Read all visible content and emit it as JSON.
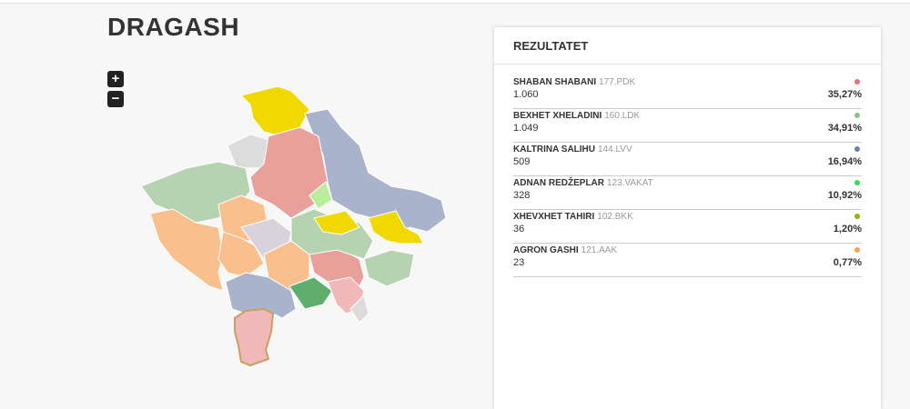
{
  "header": {
    "title": "DRAGASH"
  },
  "map": {
    "zoom_in": "+",
    "zoom_out": "−"
  },
  "panel": {
    "title": "REZULTATET",
    "rows": [
      {
        "name": "SHABAN SHABANI",
        "code": "177.PDK",
        "votes": "1.060",
        "percent": "35,27%",
        "color": "#e57373"
      },
      {
        "name": "BEXHET XHELADINI",
        "code": "160.LDK",
        "votes": "1.049",
        "percent": "34,91%",
        "color": "#81c784"
      },
      {
        "name": "KALTRINA SALIHU",
        "code": "144.LVV",
        "votes": "509",
        "percent": "16,94%",
        "color": "#6b7fb0"
      },
      {
        "name": "ADNAN REDŽEPLAR",
        "code": "123.VAKAT",
        "votes": "328",
        "percent": "10,92%",
        "color": "#33dd55"
      },
      {
        "name": "XHEVXHET TAHIRI",
        "code": "102.BKK",
        "votes": "36",
        "percent": "1,20%",
        "color": "#9aad00"
      },
      {
        "name": "AGRON GASHI",
        "code": "121.AAK",
        "votes": "23",
        "percent": "0,77%",
        "color": "#f4a259"
      }
    ]
  }
}
